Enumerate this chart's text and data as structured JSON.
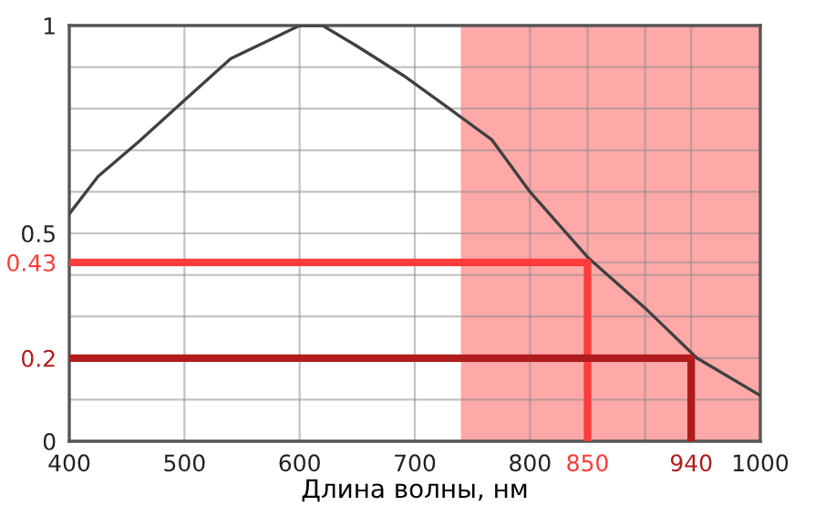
{
  "chart_data": {
    "type": "line",
    "xlabel": "Длина волны, нм",
    "xlim": [
      400,
      1000
    ],
    "ylim": [
      0,
      1
    ],
    "xticks": [
      400,
      500,
      600,
      700,
      800,
      850,
      {
        "value": 900,
        "label": null
      },
      940,
      1000
    ],
    "yticks": [
      0,
      {
        "value": 0.1,
        "label": null
      },
      0.2,
      {
        "value": 0.3,
        "label": null
      },
      {
        "value": 0.4,
        "label": null
      },
      0.43,
      0.5,
      {
        "value": 0.6,
        "label": null
      },
      {
        "value": 0.7,
        "label": null
      },
      {
        "value": 0.8,
        "label": null
      },
      {
        "value": 0.9,
        "label": null
      },
      1
    ],
    "grid": true,
    "bands": [
      {
        "axis": "x",
        "from": 740,
        "to": 1000,
        "color": "#ffa8a8"
      }
    ],
    "series": [
      {
        "color": "#404040",
        "x": [
          400,
          425,
          460,
          500,
          540,
          570,
          600,
          620,
          650,
          690,
          730,
          767,
          800,
          851,
          902,
          945,
          1000
        ],
        "values": [
          0.547,
          0.637,
          0.72,
          0.82,
          0.92,
          0.96,
          1.0,
          1.0,
          0.95,
          0.88,
          0.8,
          0.725,
          0.6,
          0.44,
          0.315,
          0.2,
          0.11
        ]
      },
      {
        "color": "#ff3b3b",
        "x": [
          400,
          850,
          850
        ],
        "values": [
          0.43,
          0.43,
          0
        ]
      },
      {
        "color": "#b01c1c",
        "x": [
          400,
          940,
          940
        ],
        "values": [
          0.2,
          0.2,
          0
        ]
      }
    ]
  }
}
